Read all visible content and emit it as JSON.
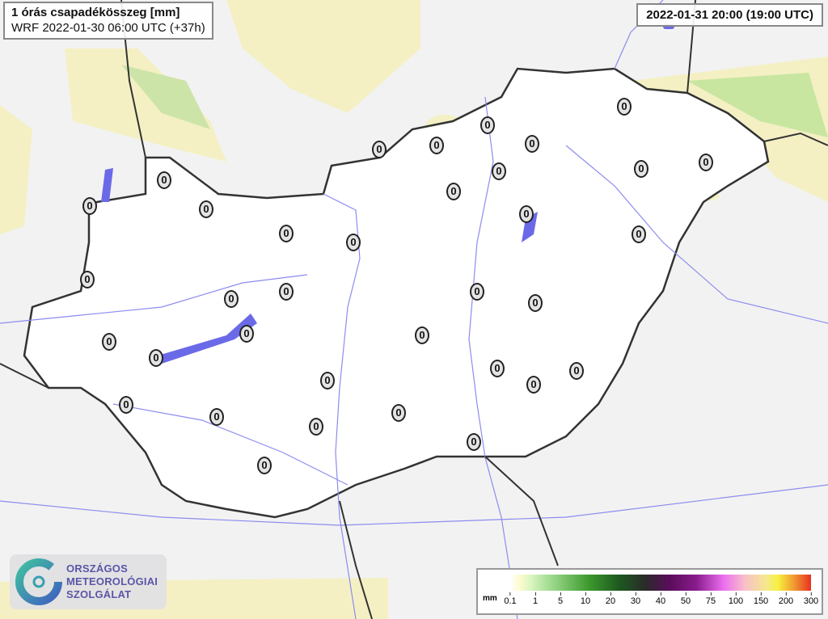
{
  "header": {
    "title": "1 órás csapadékösszeg [mm]",
    "model_run": "WRF 2022-01-30 06:00 UTC (+37h)",
    "valid_time": "2022-01-31 20:00 (19:00 UTC)"
  },
  "logo": {
    "line1": "ORSZÁGOS",
    "line2": "METEOROLÓGIAI",
    "line3": "SZOLGÁLAT"
  },
  "legend": {
    "unit": "mm",
    "ticks": [
      "0.1",
      "1",
      "5",
      "10",
      "20",
      "30",
      "40",
      "50",
      "75",
      "100",
      "150",
      "200",
      "300"
    ],
    "colors": [
      "#ffffff",
      "#fffbd0",
      "#9ad88a",
      "#3d9a2e",
      "#1e5a1e",
      "#2a2a2a",
      "#5a0d5a",
      "#8a1c8e",
      "#ec70f0",
      "#f8c0c8",
      "#f8f040",
      "#f0a030",
      "#e83020"
    ]
  },
  "map": {
    "station_values": [
      "0",
      "0",
      "0",
      "0",
      "0",
      "0",
      "0",
      "0",
      "0",
      "0",
      "0",
      "0",
      "0",
      "0",
      "0",
      "0",
      "0",
      "0",
      "0",
      "0",
      "0",
      "0",
      "0",
      "0",
      "0",
      "0",
      "0",
      "0",
      "0",
      "0",
      "0",
      "0",
      "0",
      "0",
      "0"
    ],
    "colors": {
      "border": "#333333",
      "rivers": "#8c8cf0",
      "light_precip": "#fbf8cc",
      "moderate_precip": "#c8e6a0",
      "precip_blue": "#6a6ae8"
    }
  }
}
